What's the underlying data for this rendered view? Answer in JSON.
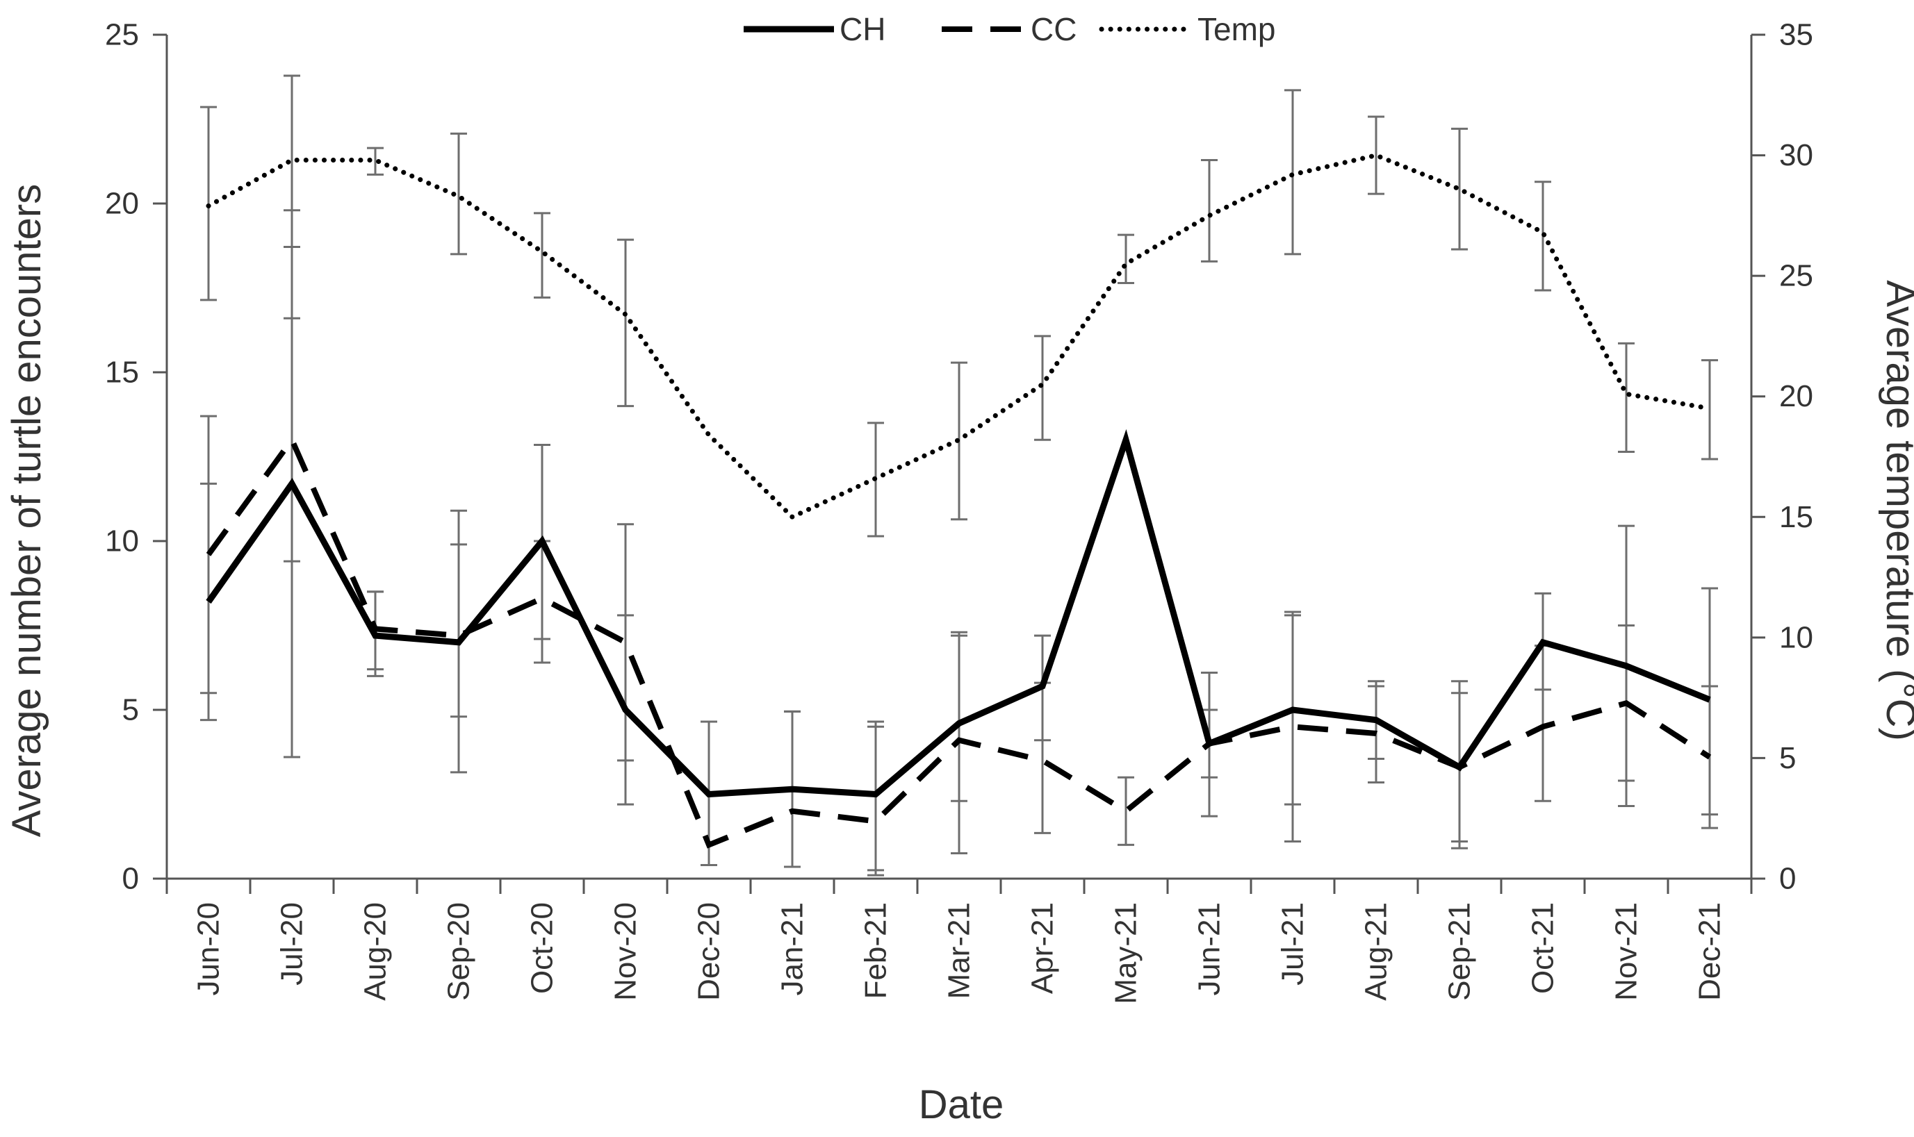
{
  "chart_data": {
    "type": "line",
    "categories": [
      "Jun-20",
      "Jul-20",
      "Aug-20",
      "Sep-20",
      "Oct-20",
      "Nov-20",
      "Dec-20",
      "Jan-21",
      "Feb-21",
      "Mar-21",
      "Apr-21",
      "May-21",
      "Jun-21",
      "Jul-21",
      "Aug-21",
      "Sep-21",
      "Oct-21",
      "Nov-21",
      "Dec-21"
    ],
    "xlabel": "Date",
    "ylabel_left": "Average number  of turtle encounters",
    "ylabel_right": "Average temperature (°C)",
    "ylim_left": [
      0,
      25
    ],
    "yticks_left": [
      "0",
      "5",
      "10",
      "15",
      "20",
      "25"
    ],
    "ylim_right": [
      0,
      35
    ],
    "yticks_right": [
      "0",
      "5",
      "10",
      "15",
      "20",
      "25",
      "30",
      "35"
    ],
    "legend_position": "top-center",
    "series": [
      {
        "name": "CH",
        "axis": "left",
        "style": "solid",
        "values": [
          8.2,
          11.7,
          7.2,
          7.0,
          10.0,
          5.0,
          2.5,
          2.65,
          2.5,
          4.6,
          5.7,
          13.0,
          4.0,
          5.0,
          4.7,
          3.3,
          7.0,
          6.3,
          5.3
        ],
        "error_low": [
          4.7,
          3.6,
          6.0,
          3.15,
          7.1,
          2.2,
          0.4,
          0.35,
          0.25,
          0.75,
          4.1,
          13.0,
          1.85,
          2.2,
          3.55,
          1.1,
          5.6,
          2.15,
          1.9
        ],
        "error_high": [
          11.7,
          19.8,
          8.5,
          9.9,
          12.85,
          7.8,
          4.65,
          4.95,
          4.65,
          7.3,
          7.2,
          13.0,
          6.1,
          7.8,
          5.85,
          5.5,
          8.45,
          10.45,
          8.6
        ]
      },
      {
        "name": "CC",
        "axis": "left",
        "style": "dashed",
        "values": [
          9.6,
          13.0,
          7.4,
          7.2,
          8.3,
          7.0,
          1.0,
          2.0,
          1.7,
          4.1,
          3.5,
          2.0,
          4.0,
          4.5,
          4.3,
          3.3,
          4.5,
          5.2,
          3.6
        ],
        "error_low": [
          5.5,
          9.4,
          6.2,
          4.8,
          6.4,
          3.5,
          0.4,
          0.35,
          0.1,
          2.3,
          1.35,
          1.0,
          3.0,
          1.1,
          2.85,
          0.9,
          2.3,
          2.9,
          1.5
        ],
        "error_high": [
          13.7,
          16.6,
          8.5,
          10.9,
          10.0,
          10.5,
          4.65,
          4.95,
          4.5,
          7.2,
          5.8,
          3.0,
          5.0,
          7.9,
          5.7,
          5.85,
          6.9,
          7.5,
          5.7
        ]
      },
      {
        "name": "Temp",
        "axis": "right",
        "style": "dotted",
        "values": [
          27.9,
          29.8,
          29.8,
          28.3,
          26.0,
          23.4,
          18.4,
          15.0,
          16.6,
          18.2,
          20.5,
          25.5,
          27.5,
          29.2,
          30.0,
          28.6,
          26.8,
          20.1,
          19.5
        ],
        "error_low": [
          24.0,
          26.2,
          29.2,
          25.9,
          24.1,
          19.6,
          18.4,
          15.0,
          14.2,
          14.9,
          18.2,
          24.7,
          25.6,
          25.9,
          28.4,
          26.1,
          24.4,
          17.7,
          17.4
        ],
        "error_high": [
          32.0,
          33.3,
          30.3,
          30.9,
          27.6,
          26.5,
          18.4,
          15.0,
          18.9,
          21.4,
          22.5,
          26.7,
          29.8,
          32.7,
          31.6,
          31.1,
          28.9,
          22.2,
          21.5
        ]
      }
    ]
  }
}
